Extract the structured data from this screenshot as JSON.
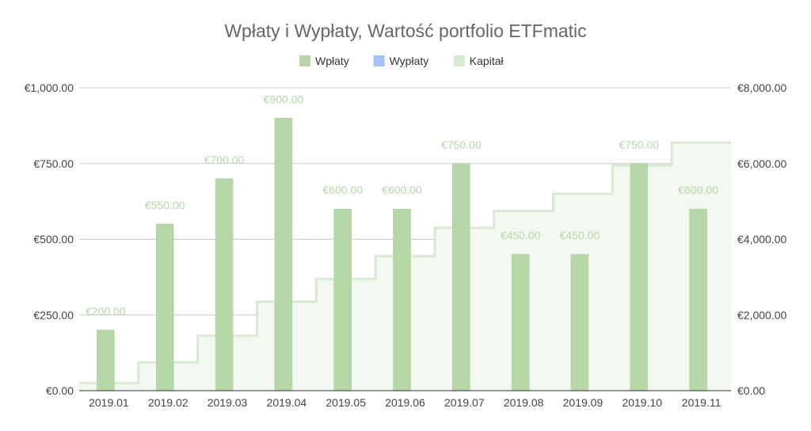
{
  "chart_data": {
    "type": "bar",
    "title": "Wpłaty i Wypłaty, Wartość portfolio  ETFmatic",
    "categories": [
      "2019.01",
      "2019.02",
      "2019.03",
      "2019.04",
      "2019.05",
      "2019.06",
      "2019.07",
      "2019.08",
      "2019.09",
      "2019.10",
      "2019.11"
    ],
    "series": [
      {
        "name": "Wpłaty",
        "kind": "bar",
        "axis": "left",
        "color": "#b6d7a8",
        "values": [
          200,
          550,
          700,
          900,
          600,
          600,
          750,
          450,
          450,
          750,
          600
        ],
        "labels": [
          "€200.00",
          "€550.00",
          "€700.00",
          "€900.00",
          "€600.00",
          "€600.00",
          "€750.00",
          "€450.00",
          "€450.00",
          "€750.00",
          "€600.00"
        ]
      },
      {
        "name": "Wypłaty",
        "kind": "bar",
        "axis": "left",
        "color": "#a4c2f4",
        "values": [
          0,
          0,
          0,
          0,
          0,
          0,
          0,
          0,
          0,
          0,
          0
        ]
      },
      {
        "name": "Kapitał",
        "kind": "stepped-area",
        "axis": "right",
        "color": "#d9ead3",
        "values": [
          200,
          750,
          1450,
          2350,
          2950,
          3550,
          4300,
          4750,
          5200,
          5950,
          6550
        ]
      }
    ],
    "y_left": {
      "range": [
        0,
        1000
      ],
      "ticks": [
        0,
        250,
        500,
        750,
        1000
      ],
      "tick_labels": [
        "€0.00",
        "€250.00",
        "€500.00",
        "€750.00",
        "€1,000.00"
      ]
    },
    "y_right": {
      "range": [
        0,
        8000
      ],
      "ticks": [
        0,
        2000,
        4000,
        6000,
        8000
      ],
      "tick_labels": [
        "€0.00",
        "€2,000.00",
        "€4,000.00",
        "€6,000.00",
        "€8,000.00"
      ]
    },
    "grid": true,
    "legend_position": "top"
  },
  "style": {
    "grid_color": "#cccccc",
    "axis_color": "#333333",
    "label_color": "#b6d7a8",
    "area_fill": "#f3f8f0",
    "area_line": "#d9ead3"
  }
}
